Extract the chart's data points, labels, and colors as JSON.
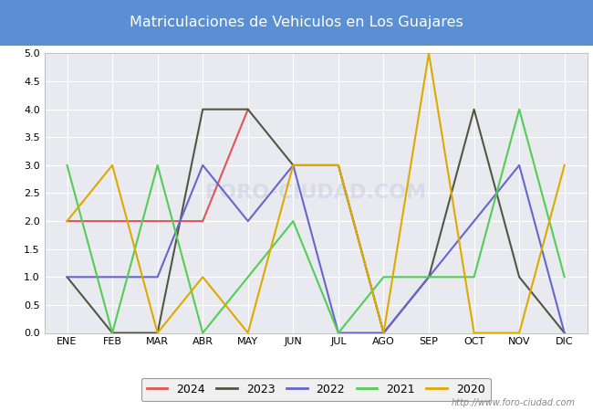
{
  "title": "Matriculaciones de Vehiculos en Los Guajares",
  "title_bg_color": "#5b8fd4",
  "title_text_color": "#ffffff",
  "plot_bg_color": "#e8eaf0",
  "fig_bg_color": "#ffffff",
  "months": [
    "ENE",
    "FEB",
    "MAR",
    "ABR",
    "MAY",
    "JUN",
    "JUL",
    "AGO",
    "SEP",
    "OCT",
    "NOV",
    "DIC"
  ],
  "month_indices": [
    1,
    2,
    3,
    4,
    5,
    6,
    7,
    8,
    9,
    10,
    11,
    12
  ],
  "series": {
    "2024": {
      "color": "#e05555",
      "data_indices": [
        1,
        2,
        3,
        4,
        5
      ],
      "data_values": [
        2,
        2,
        2,
        2,
        4
      ]
    },
    "2023": {
      "color": "#555544",
      "data_indices": [
        1,
        2,
        3,
        4,
        5,
        6,
        7,
        8,
        9,
        10,
        11,
        12
      ],
      "data_values": [
        1,
        0,
        0,
        4,
        4,
        3,
        3,
        0,
        1,
        4,
        1,
        0
      ]
    },
    "2022": {
      "color": "#6666cc",
      "data_indices": [
        1,
        2,
        3,
        4,
        5,
        6,
        7,
        8,
        9,
        10,
        11,
        12
      ],
      "data_values": [
        1,
        1,
        1,
        3,
        2,
        3,
        0,
        0,
        1,
        2,
        3,
        0
      ]
    },
    "2021": {
      "color": "#55cc55",
      "data_indices": [
        1,
        2,
        3,
        4,
        5,
        6,
        7,
        8,
        9,
        10,
        11,
        12
      ],
      "data_values": [
        3,
        0,
        3,
        0,
        1,
        2,
        0,
        1,
        1,
        1,
        4,
        1
      ]
    },
    "2020": {
      "color": "#ddaa00",
      "data_indices": [
        1,
        2,
        3,
        4,
        5,
        6,
        7,
        8,
        9,
        10,
        11,
        12
      ],
      "data_values": [
        2,
        3,
        0,
        1,
        0,
        3,
        3,
        0,
        5,
        0,
        0,
        3
      ]
    }
  },
  "ylim": [
    0,
    5.0
  ],
  "yticks": [
    0.0,
    0.5,
    1.0,
    1.5,
    2.0,
    2.5,
    3.0,
    3.5,
    4.0,
    4.5,
    5.0
  ],
  "grid_color": "#ffffff",
  "watermark_plot": "FORO-CIUDAD.COM",
  "watermark_url": "http://www.foro-ciudad.com",
  "legend_order": [
    "2024",
    "2023",
    "2022",
    "2021",
    "2020"
  ]
}
